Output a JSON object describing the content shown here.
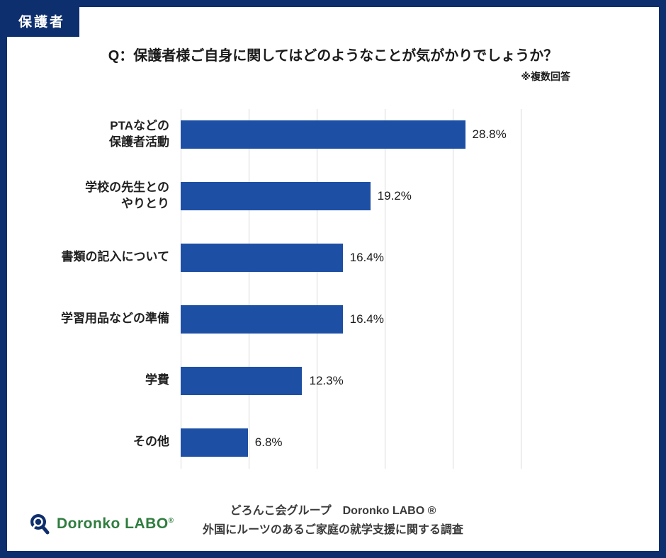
{
  "badge": {
    "label": "保護者"
  },
  "title": "Q：保護者様ご自身に関してはどのようなことが気がかりでしょうか？",
  "note": "※複数回答",
  "chart_data": {
    "type": "bar",
    "orientation": "horizontal",
    "title": "Q：保護者様ご自身に関してはどのようなことが気がかりでしょうか？",
    "categories": [
      "PTAなどの\n保護者活動",
      "学校の先生との\nやりとり",
      "書類の記入について",
      "学習用品などの準備",
      "学費",
      "その他"
    ],
    "values": [
      28.8,
      19.2,
      16.4,
      16.4,
      12.3,
      6.8
    ],
    "value_labels": [
      "28.8%",
      "19.2%",
      "16.4%",
      "16.4%",
      "12.3%",
      "6.8%"
    ],
    "xlim": [
      0,
      34.5
    ],
    "grid": true,
    "legend": false,
    "bar_color": "#1d4fa5"
  },
  "footer": {
    "logo_text": "Doronko LABO",
    "logo_reg": "®",
    "line1": "どろんこ会グループ　Doronko LABO ®",
    "line2": "外国にルーツのあるご家庭の就学支援に関する調査"
  },
  "colors": {
    "frame": "#0e2f6e",
    "bar": "#1d4fa5",
    "logo_green": "#2f7d3f"
  }
}
